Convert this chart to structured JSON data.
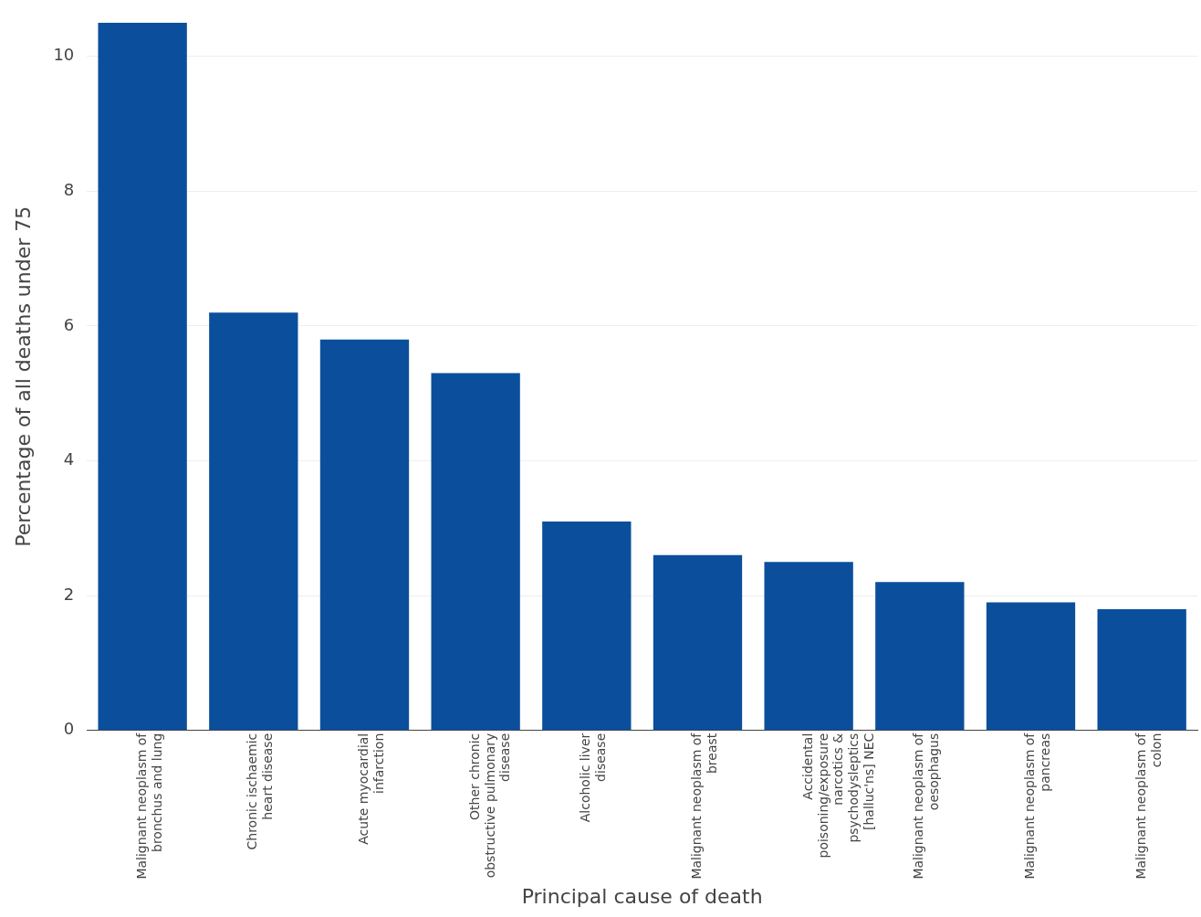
{
  "chart_data": {
    "type": "bar",
    "xlabel": "Principal cause of death",
    "ylabel": "Percentage of all deaths under 75",
    "categories": [
      "Malignant neoplasm of bronchus and lung",
      "Chronic ischaemic heart disease",
      "Acute myocardial infarction",
      "Other chronic obstructive pulmonary disease",
      "Alcoholic liver disease",
      "Malignant neoplasm of breast",
      "Accidental poisoning/exposure narcotics & psychodysleptics [halluc'ns] NEC",
      "Malignant neoplasm of oesophagus",
      "Malignant neoplasm of pancreas",
      "Malignant neoplasm of colon"
    ],
    "values": [
      10.5,
      6.2,
      5.8,
      5.3,
      3.1,
      2.6,
      2.5,
      2.2,
      1.9,
      1.8
    ],
    "color": "#0b4f9c",
    "ylim": [
      0,
      10.5
    ],
    "yticks": [
      0,
      2,
      4,
      6,
      8,
      10
    ],
    "grid": "y"
  }
}
